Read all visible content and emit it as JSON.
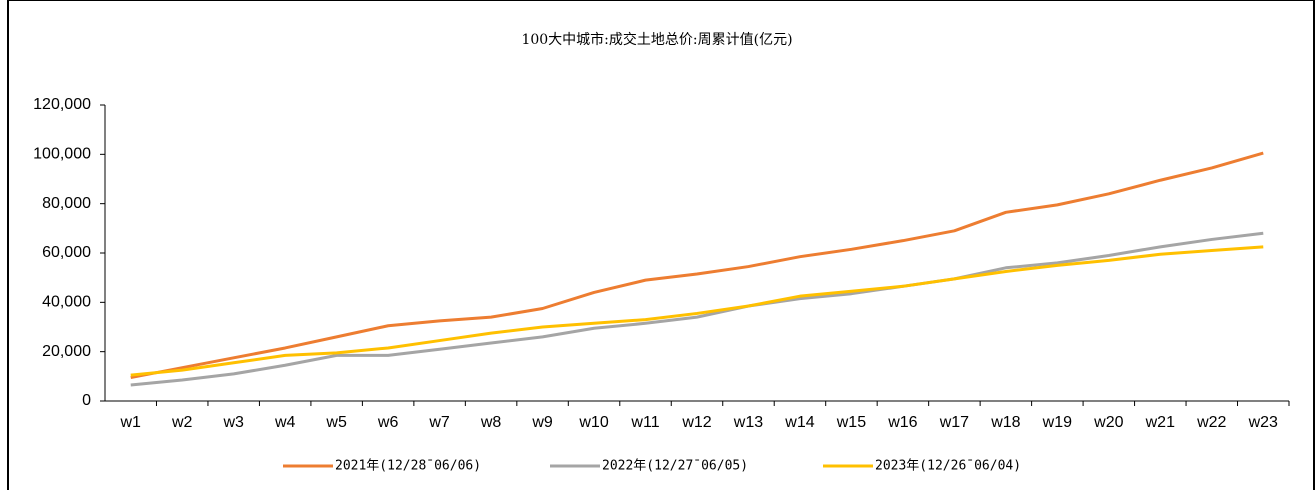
{
  "chart_data": {
    "type": "line",
    "title": "100大中城市:成交土地总价:周累计值(亿元)",
    "categories": [
      "w1",
      "w2",
      "w3",
      "w4",
      "w5",
      "w6",
      "w7",
      "w8",
      "w9",
      "w10",
      "w11",
      "w12",
      "w13",
      "w14",
      "w15",
      "w16",
      "w17",
      "w18",
      "w19",
      "w20",
      "w21",
      "w22",
      "w23"
    ],
    "series": [
      {
        "name": "2021年(12/28¯06/06)",
        "color": "#ed7d31",
        "values": [
          9500,
          13500,
          17500,
          21500,
          26000,
          30500,
          32500,
          34000,
          37500,
          44000,
          49000,
          51500,
          54500,
          58500,
          61500,
          65000,
          69000,
          76500,
          79500,
          84000,
          89500,
          94500,
          100500
        ]
      },
      {
        "name": "2022年(12/27¯06/05)",
        "color": "#a5a5a5",
        "values": [
          6500,
          8500,
          11000,
          14500,
          18500,
          18500,
          21000,
          23500,
          26000,
          29500,
          31500,
          34000,
          38500,
          41500,
          43500,
          46500,
          49500,
          54000,
          56000,
          59000,
          62500,
          65500,
          68000
        ]
      },
      {
        "name": "2023年(12/26¯06/04)",
        "color": "#ffc000",
        "values": [
          10500,
          12500,
          15500,
          18500,
          19500,
          21500,
          24500,
          27500,
          30000,
          31500,
          33000,
          35500,
          38500,
          42500,
          44500,
          46500,
          49500,
          52500,
          55000,
          57000,
          59500,
          61000,
          62500
        ]
      }
    ],
    "ylim": [
      0,
      120000
    ],
    "yticks": [
      0,
      {
        "value": 20000,
        "label": "20,000"
      },
      {
        "value": 40000,
        "label": "40,000"
      },
      {
        "value": 60000,
        "label": "60,000"
      },
      {
        "value": 80000,
        "label": "80,000"
      },
      {
        "value": 100000,
        "label": "100,000"
      },
      {
        "value": 120000,
        "label": "120,000"
      }
    ],
    "grid": false,
    "legend": "bottom"
  }
}
